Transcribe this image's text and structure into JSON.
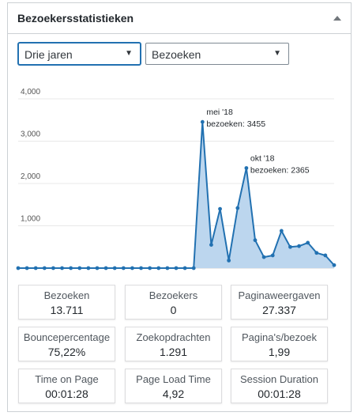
{
  "widget": {
    "title": "Bezoekersstatistieken"
  },
  "filters": {
    "period": "Drie jaren",
    "metric": "Bezoeken"
  },
  "chart_data": {
    "type": "area",
    "y_ticks": [
      "1,000",
      "2,000",
      "3,000",
      "4,000"
    ],
    "ylim": [
      0,
      4300
    ],
    "values": [
      0,
      0,
      0,
      0,
      0,
      0,
      0,
      0,
      0,
      0,
      0,
      0,
      0,
      0,
      0,
      0,
      0,
      0,
      0,
      0,
      0,
      3455,
      550,
      1400,
      180,
      1420,
      2365,
      660,
      260,
      300,
      880,
      500,
      520,
      600,
      360,
      300,
      70
    ],
    "annotations": [
      {
        "index": 21,
        "line1": "mei '18",
        "line2": "bezoeken: 3455"
      },
      {
        "index": 26,
        "line1": "okt '18",
        "line2": "bezoeken: 2365"
      }
    ],
    "color": "#2271b1",
    "fill": "#bcd6ee"
  },
  "stats": [
    {
      "label": "Bezoeken",
      "value": "13.711"
    },
    {
      "label": "Bezoekers",
      "value": "0"
    },
    {
      "label": "Paginaweergaven",
      "value": "27.337"
    },
    {
      "label": "Bouncepercentage",
      "value": "75,22%"
    },
    {
      "label": "Zoekopdrachten",
      "value": "1.291"
    },
    {
      "label": "Pagina's/bezoek",
      "value": "1,99"
    },
    {
      "label": "Time on Page",
      "value": "00:01:28"
    },
    {
      "label": "Page Load Time",
      "value": "4,92"
    },
    {
      "label": "Session Duration",
      "value": "00:01:28"
    }
  ]
}
